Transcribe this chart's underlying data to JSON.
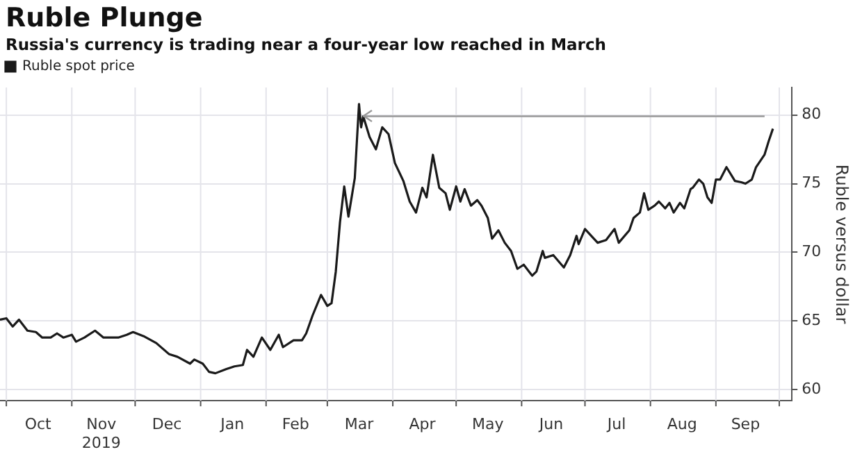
{
  "chart_data": {
    "type": "line",
    "title": "Ruble Plunge",
    "subtitle": "Russia's currency is trading near a four-year low reached in March",
    "ylabel": "Ruble versus dollar",
    "x": [
      "2019-09-28",
      "2019-10-01",
      "2019-10-04",
      "2019-10-07",
      "2019-10-11",
      "2019-10-15",
      "2019-10-18",
      "2019-10-22",
      "2019-10-25",
      "2019-10-28",
      "2019-11-01",
      "2019-11-03",
      "2019-11-07",
      "2019-11-12",
      "2019-11-16",
      "2019-11-23",
      "2019-11-27",
      "2019-11-30",
      "2019-12-05",
      "2019-12-11",
      "2019-12-17",
      "2019-12-21",
      "2019-12-27",
      "2019-12-29",
      "2020-01-02",
      "2020-01-05",
      "2020-01-08",
      "2020-01-13",
      "2020-01-17",
      "2020-01-21",
      "2020-01-23",
      "2020-01-26",
      "2020-01-30",
      "2020-02-03",
      "2020-02-07",
      "2020-02-09",
      "2020-02-14",
      "2020-02-18",
      "2020-02-20",
      "2020-02-23",
      "2020-02-27",
      "2020-03-01",
      "2020-03-03",
      "2020-03-05",
      "2020-03-07",
      "2020-03-09",
      "2020-03-11",
      "2020-03-14",
      "2020-03-16",
      "2020-03-17",
      "2020-03-18",
      "2020-03-21",
      "2020-03-24",
      "2020-03-27",
      "2020-03-30",
      "2020-04-02",
      "2020-04-06",
      "2020-04-07",
      "2020-04-09",
      "2020-04-12",
      "2020-04-15",
      "2020-04-17",
      "2020-04-20",
      "2020-04-23",
      "2020-04-26",
      "2020-04-28",
      "2020-05-01",
      "2020-05-03",
      "2020-05-05",
      "2020-05-08",
      "2020-05-11",
      "2020-05-13",
      "2020-05-16",
      "2020-05-18",
      "2020-05-21",
      "2020-05-24",
      "2020-05-27",
      "2020-05-30",
      "2020-06-02",
      "2020-06-06",
      "2020-06-08",
      "2020-06-11",
      "2020-06-12",
      "2020-06-16",
      "2020-06-21",
      "2020-06-24",
      "2020-06-27",
      "2020-06-28",
      "2020-07-01",
      "2020-07-07",
      "2020-07-11",
      "2020-07-15",
      "2020-07-17",
      "2020-07-22",
      "2020-07-24",
      "2020-07-27",
      "2020-07-29",
      "2020-07-31",
      "2020-08-03",
      "2020-08-05",
      "2020-08-08",
      "2020-08-10",
      "2020-08-12",
      "2020-08-15",
      "2020-08-17",
      "2020-08-20",
      "2020-08-21",
      "2020-08-24",
      "2020-08-26",
      "2020-08-28",
      "2020-08-30",
      "2020-09-01",
      "2020-09-03",
      "2020-09-06",
      "2020-09-10",
      "2020-09-13",
      "2020-09-15",
      "2020-09-18",
      "2020-09-20",
      "2020-09-24",
      "2020-09-26",
      "2020-09-28"
    ],
    "series": [
      {
        "name": "Ruble spot price",
        "color": "#1a1a1a",
        "values": [
          65.1,
          65.2,
          64.6,
          65.1,
          64.3,
          64.2,
          63.8,
          63.8,
          64.1,
          63.8,
          64.0,
          63.5,
          63.8,
          64.3,
          63.8,
          63.8,
          64.0,
          64.2,
          63.9,
          63.4,
          62.6,
          62.4,
          61.9,
          62.2,
          61.9,
          61.3,
          61.2,
          61.5,
          61.7,
          61.8,
          62.9,
          62.4,
          63.8,
          62.9,
          64.0,
          63.1,
          63.6,
          63.6,
          64.1,
          65.4,
          66.9,
          66.1,
          66.3,
          68.6,
          72.2,
          74.8,
          72.6,
          75.4,
          80.8,
          79.1,
          79.9,
          78.4,
          77.5,
          79.1,
          78.6,
          76.5,
          75.2,
          74.7,
          73.7,
          72.9,
          74.7,
          74.0,
          77.1,
          74.7,
          74.3,
          73.1,
          74.8,
          73.7,
          74.6,
          73.4,
          73.8,
          73.4,
          72.5,
          71.0,
          71.6,
          70.7,
          70.1,
          68.8,
          69.1,
          68.3,
          68.6,
          70.1,
          69.6,
          69.8,
          68.9,
          69.8,
          71.2,
          70.6,
          71.7,
          70.7,
          70.9,
          71.7,
          70.7,
          71.6,
          72.5,
          72.9,
          74.3,
          73.1,
          73.4,
          73.7,
          73.2,
          73.6,
          72.9,
          73.6,
          73.2,
          74.6,
          74.7,
          75.3,
          75.0,
          74.0,
          73.6,
          75.3,
          75.3,
          76.2,
          75.2,
          75.1,
          75.0,
          75.3,
          76.2,
          77.1,
          78.1,
          79.0
        ]
      }
    ],
    "xlim": [
      "2019-09-28",
      "2020-10-07"
    ],
    "xticks": [
      {
        "value": "2019-10-16",
        "label": "Oct"
      },
      {
        "value": "2019-11-15",
        "label": "Nov\n2019"
      },
      {
        "value": "2019-12-16",
        "label": "Dec"
      },
      {
        "value": "2020-01-16",
        "label": "Jan"
      },
      {
        "value": "2020-02-15",
        "label": "Feb"
      },
      {
        "value": "2020-03-16",
        "label": "Mar"
      },
      {
        "value": "2020-04-15",
        "label": "Apr"
      },
      {
        "value": "2020-05-16",
        "label": "May"
      },
      {
        "value": "2020-06-15",
        "label": "Jun"
      },
      {
        "value": "2020-07-16",
        "label": "Jul"
      },
      {
        "value": "2020-08-16",
        "label": "Aug"
      },
      {
        "value": "2020-09-15",
        "label": "Sep"
      }
    ],
    "ylim": [
      59.2,
      82
    ],
    "yticks": [
      60,
      65,
      70,
      75,
      80
    ],
    "ref_lines": [
      {
        "axis": "y",
        "value": 79.9,
        "color": "#999999"
      }
    ],
    "grid": true,
    "legend": "top left",
    "marker": "none",
    "line_style": "solid"
  }
}
